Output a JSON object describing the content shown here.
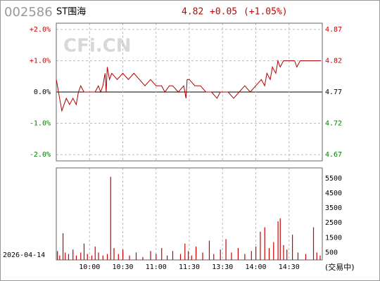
{
  "header": {
    "code": "002586",
    "name": "ST围海",
    "price": "4.82",
    "change": "+0.05",
    "percent": "(+1.05%)",
    "watermark": "CFi.CN",
    "date": "2026-04-14",
    "status": "(交易中)"
  },
  "chart_data": [
    {
      "type": "line",
      "color": "#b00000",
      "x": [
        "09:30",
        "09:31",
        "09:33",
        "09:35",
        "09:37",
        "09:39",
        "09:42",
        "09:45",
        "09:48",
        "09:50",
        "09:52",
        "09:55",
        "10:00",
        "10:05",
        "10:08",
        "10:10",
        "10:12",
        "10:14",
        "10:15",
        "10:16",
        "10:18",
        "10:20",
        "10:25",
        "10:30",
        "10:35",
        "10:40",
        "10:45",
        "10:50",
        "10:55",
        "11:00",
        "11:05",
        "11:08",
        "11:12",
        "11:15",
        "11:20",
        "11:25",
        "11:27",
        "11:28",
        "13:00",
        "13:05",
        "13:10",
        "13:15",
        "13:20",
        "13:25",
        "13:28",
        "13:35",
        "13:40",
        "13:45",
        "13:50",
        "13:55",
        "14:00",
        "14:05",
        "14:08",
        "14:10",
        "14:13",
        "14:15",
        "14:18",
        "14:20",
        "14:22",
        "14:25",
        "14:30",
        "14:35",
        "14:37",
        "14:40",
        "14:50",
        "14:59"
      ],
      "values": [
        4.79,
        4.78,
        4.76,
        4.74,
        4.75,
        4.76,
        4.75,
        4.76,
        4.75,
        4.77,
        4.78,
        4.77,
        4.77,
        4.77,
        4.78,
        4.77,
        4.78,
        4.8,
        4.77,
        4.81,
        4.79,
        4.8,
        4.79,
        4.8,
        4.79,
        4.8,
        4.79,
        4.78,
        4.79,
        4.78,
        4.78,
        4.77,
        4.78,
        4.78,
        4.77,
        4.78,
        4.76,
        4.79,
        4.79,
        4.78,
        4.78,
        4.77,
        4.77,
        4.76,
        4.77,
        4.77,
        4.76,
        4.77,
        4.78,
        4.77,
        4.78,
        4.79,
        4.78,
        4.8,
        4.79,
        4.81,
        4.8,
        4.82,
        4.81,
        4.82,
        4.82,
        4.82,
        4.81,
        4.82,
        4.82,
        4.82
      ],
      "ylim": [
        4.66,
        4.88
      ],
      "yticks": [
        {
          "value": 4.87,
          "label": "+2.0%"
        },
        {
          "value": 4.82,
          "label": "+1.0%"
        },
        {
          "value": 4.77,
          "label": "0.0%"
        },
        {
          "value": 4.72,
          "label": "-1.0%"
        },
        {
          "value": 4.67,
          "label": "-2.0%"
        }
      ],
      "y2lim": [
        4.66,
        4.88
      ],
      "y2ticks": [
        4.87,
        4.82,
        4.77,
        4.72,
        4.67
      ],
      "grid": true
    },
    {
      "type": "bar",
      "color": "#cc0000",
      "x": [
        "09:31",
        "09:33",
        "09:36",
        "09:38",
        "09:41",
        "09:45",
        "09:48",
        "09:52",
        "09:55",
        "09:58",
        "10:02",
        "10:05",
        "10:08",
        "10:12",
        "10:16",
        "10:19",
        "10:22",
        "10:26",
        "10:30",
        "10:36",
        "10:42",
        "10:48",
        "10:55",
        "11:00",
        "11:05",
        "11:10",
        "11:15",
        "11:22",
        "11:26",
        "11:29",
        "13:02",
        "13:06",
        "13:12",
        "13:18",
        "13:22",
        "13:28",
        "13:33",
        "13:38",
        "13:44",
        "13:50",
        "13:56",
        "14:00",
        "14:04",
        "14:08",
        "14:12",
        "14:16",
        "14:20",
        "14:22",
        "14:25",
        "14:28",
        "14:33",
        "14:38",
        "14:45",
        "14:52",
        "14:55",
        "14:58"
      ],
      "values": [
        600,
        300,
        1800,
        500,
        400,
        700,
        300,
        500,
        1100,
        400,
        300,
        900,
        500,
        300,
        400,
        5600,
        800,
        400,
        700,
        300,
        500,
        200,
        600,
        400,
        800,
        300,
        600,
        400,
        1100,
        600,
        300,
        900,
        500,
        1300,
        400,
        700,
        1400,
        500,
        800,
        400,
        600,
        900,
        1900,
        2200,
        800,
        1200,
        2600,
        2800,
        1000,
        700,
        1700,
        500,
        400,
        2200,
        500,
        300
      ],
      "ylim": [
        0,
        6200
      ],
      "y2ticks": [
        500,
        1500,
        2500,
        3500,
        4500,
        5500
      ],
      "xticks": [
        "10:00",
        "10:30",
        "11:00",
        "11:30",
        "13:30",
        "14:00",
        "14:30"
      ],
      "grid": true
    }
  ]
}
